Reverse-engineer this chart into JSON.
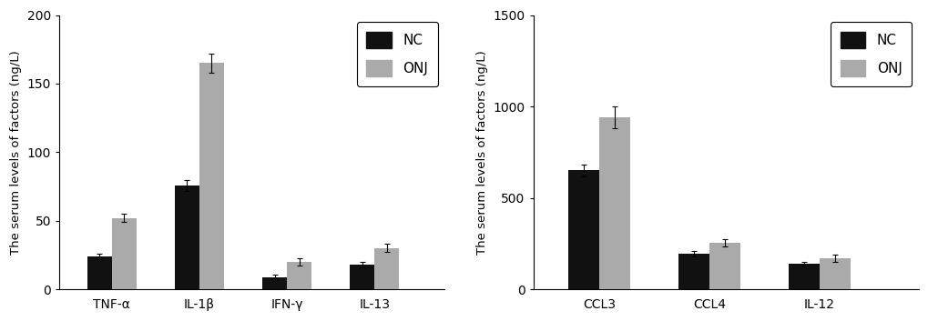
{
  "left_chart": {
    "categories": [
      "TNF-α",
      "IL-1β",
      "IFN-γ",
      "IL-13"
    ],
    "NC_values": [
      24,
      76,
      9,
      18
    ],
    "ONJ_values": [
      52,
      165,
      20,
      30
    ],
    "NC_errors": [
      2,
      4,
      1.5,
      2
    ],
    "ONJ_errors": [
      3,
      7,
      2.5,
      3
    ],
    "ylabel": "The serum levels of factors (ng/L)",
    "ylim": [
      0,
      200
    ],
    "yticks": [
      0,
      50,
      100,
      150,
      200
    ],
    "xlim": [
      -0.6,
      3.8
    ]
  },
  "right_chart": {
    "categories": [
      "CCL3",
      "CCL4",
      "IL-12"
    ],
    "NC_values": [
      650,
      195,
      140
    ],
    "ONJ_values": [
      940,
      255,
      170
    ],
    "NC_errors": [
      30,
      15,
      12
    ],
    "ONJ_errors": [
      60,
      18,
      20
    ],
    "ylabel": "The serum levels of factors (ng/L)",
    "ylim": [
      0,
      1500
    ],
    "yticks": [
      0,
      500,
      1000,
      1500
    ],
    "xlim": [
      -0.6,
      2.9
    ]
  },
  "NC_color": "#111111",
  "ONJ_color": "#aaaaaa",
  "bar_width": 0.28,
  "background_color": "#ffffff",
  "font_size": 10,
  "legend_fontsize": 11
}
